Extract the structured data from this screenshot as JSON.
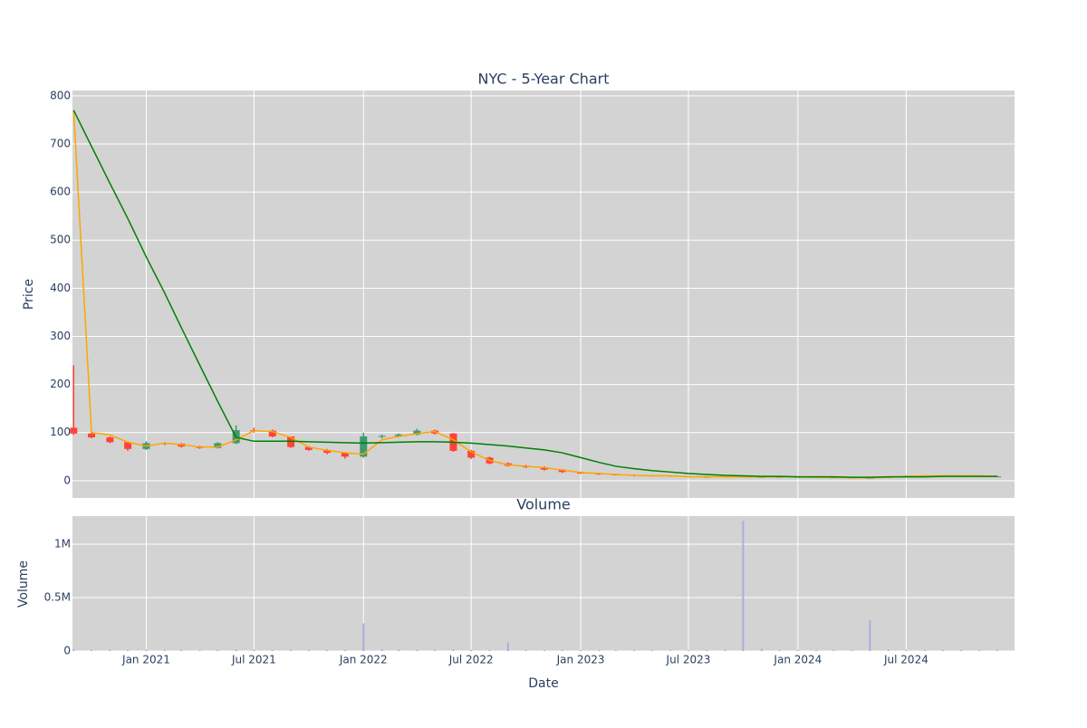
{
  "chart_data": {
    "type": "candlestick",
    "title": "NYC - 5-Year Chart",
    "ylabel": "Price",
    "xlabel": "Date",
    "x": [
      "2020-09-01",
      "2020-10-01",
      "2020-11-01",
      "2020-12-01",
      "2021-01-01",
      "2021-02-01",
      "2021-03-01",
      "2021-04-01",
      "2021-05-01",
      "2021-06-01",
      "2021-07-01",
      "2021-08-01",
      "2021-09-01",
      "2021-10-01",
      "2021-11-01",
      "2021-12-01",
      "2022-01-01",
      "2022-02-01",
      "2022-03-01",
      "2022-04-01",
      "2022-05-01",
      "2022-06-01",
      "2022-07-01",
      "2022-08-01",
      "2022-09-01",
      "2022-10-01",
      "2022-11-01",
      "2022-12-01",
      "2023-01-01",
      "2023-02-01",
      "2023-03-01",
      "2023-04-01",
      "2023-05-01",
      "2023-06-01",
      "2023-07-01",
      "2023-08-01",
      "2023-09-01",
      "2023-10-01",
      "2023-11-01",
      "2023-12-01",
      "2024-01-01",
      "2024-02-01",
      "2024-03-01",
      "2024-04-01",
      "2024-05-01",
      "2024-06-01",
      "2024-07-01",
      "2024-08-01",
      "2024-09-01",
      "2024-10-01",
      "2024-11-01",
      "2024-12-01"
    ],
    "open": [
      110,
      98,
      90,
      80,
      66,
      78,
      77,
      71,
      68,
      78,
      105,
      104,
      92,
      70,
      64,
      58,
      50,
      92,
      93,
      96,
      104,
      98,
      62,
      48,
      36,
      31,
      28,
      23,
      18,
      15,
      13,
      12,
      10,
      11,
      9,
      8,
      8,
      9,
      8,
      8,
      8,
      8,
      7,
      7,
      6,
      6,
      8,
      10,
      10,
      10,
      10,
      9
    ],
    "high": [
      240,
      100,
      92,
      82,
      82,
      80,
      78,
      73,
      80,
      115,
      110,
      106,
      92,
      72,
      66,
      60,
      100,
      96,
      98,
      108,
      106,
      99,
      64,
      50,
      38,
      33,
      30,
      24,
      19,
      16,
      14,
      13,
      12,
      11,
      10,
      9,
      10,
      10,
      9,
      9,
      9,
      8,
      8,
      7,
      7,
      9,
      11,
      11,
      11,
      11,
      10,
      10
    ],
    "low": [
      95,
      88,
      78,
      62,
      64,
      74,
      69,
      66,
      67,
      76,
      100,
      90,
      68,
      62,
      55,
      46,
      48,
      88,
      90,
      94,
      96,
      60,
      45,
      34,
      29,
      26,
      21,
      16,
      14,
      12,
      11,
      9,
      9,
      8,
      7,
      7,
      7,
      7,
      7,
      7,
      7,
      6,
      6,
      5,
      5,
      6,
      8,
      9,
      9,
      9,
      8,
      8
    ],
    "close": [
      98,
      90,
      80,
      66,
      78,
      77,
      71,
      68,
      78,
      105,
      104,
      92,
      70,
      64,
      58,
      50,
      92,
      93,
      96,
      104,
      98,
      62,
      48,
      36,
      31,
      28,
      23,
      18,
      15,
      13,
      12,
      10,
      11,
      9,
      8,
      8,
      9,
      8,
      8,
      8,
      8,
      7,
      7,
      6,
      6,
      8,
      10,
      10,
      10,
      10,
      9,
      9
    ],
    "increasing_color": "#3d9970",
    "decreasing_color": "#ff4136",
    "lines": [
      {
        "color": "orange",
        "values": [
          770,
          100,
          95,
          80,
          72,
          78,
          75,
          70,
          70,
          85,
          104,
          102,
          90,
          70,
          63,
          58,
          55,
          85,
          92,
          98,
          102,
          85,
          60,
          42,
          33,
          30,
          27,
          22,
          17,
          15,
          13,
          11,
          10,
          10,
          8,
          8,
          8,
          8,
          8,
          8,
          8,
          7,
          7,
          6,
          6,
          7,
          9,
          10,
          10,
          10,
          10,
          9
        ]
      },
      {
        "color": "green",
        "values": [
          770,
          695,
          618,
          545,
          465,
          390,
          318,
          240,
          165,
          90,
          82,
          82,
          82,
          81,
          80,
          79,
          78,
          79,
          80,
          81,
          81,
          80,
          78,
          75,
          72,
          68,
          64,
          58,
          48,
          38,
          30,
          25,
          21,
          18,
          15,
          13,
          11,
          10,
          9,
          9,
          8,
          8,
          8,
          7,
          7,
          8,
          8,
          8,
          9,
          9,
          9,
          9
        ]
      }
    ],
    "xlim": [
      "2020-08-30",
      "2024-12-30"
    ],
    "xticks": [
      {
        "value": "2021-01-01",
        "label": "Jan 2021"
      },
      {
        "value": "2021-07-01",
        "label": "Jul 2021"
      },
      {
        "value": "2022-01-01",
        "label": "Jan 2022"
      },
      {
        "value": "2022-07-01",
        "label": "Jul 2022"
      },
      {
        "value": "2023-01-01",
        "label": "Jan 2023"
      },
      {
        "value": "2023-07-01",
        "label": "Jul 2023"
      },
      {
        "value": "2024-01-01",
        "label": "Jan 2024"
      },
      {
        "value": "2024-07-01",
        "label": "Jul 2024"
      }
    ],
    "ylim": [
      -36,
      811
    ],
    "yticks": [
      0,
      100,
      200,
      300,
      400,
      500,
      600,
      700,
      800
    ],
    "grid": true,
    "volume": {
      "title": "Volume",
      "ylabel": "Volume",
      "color": "#a9aee0",
      "values": [
        15000,
        12000,
        10000,
        9000,
        12000,
        10000,
        9000,
        8000,
        9000,
        14000,
        12000,
        9000,
        10000,
        8000,
        8000,
        9000,
        260000,
        15000,
        12000,
        11000,
        10000,
        12000,
        10000,
        9000,
        80000,
        9000,
        8000,
        8000,
        9000,
        8000,
        8000,
        7000,
        7000,
        7000,
        8000,
        9000,
        10000,
        1220000,
        20000,
        10000,
        9000,
        8000,
        8000,
        8000,
        290000,
        12000,
        10000,
        9000,
        8000,
        8000,
        8000,
        8000
      ],
      "ylim": [
        0,
        1263000
      ],
      "yticks": [
        0,
        {
          "value": 500000,
          "label": "0.5M"
        },
        {
          "value": 1000000,
          "label": "1M"
        }
      ]
    }
  }
}
